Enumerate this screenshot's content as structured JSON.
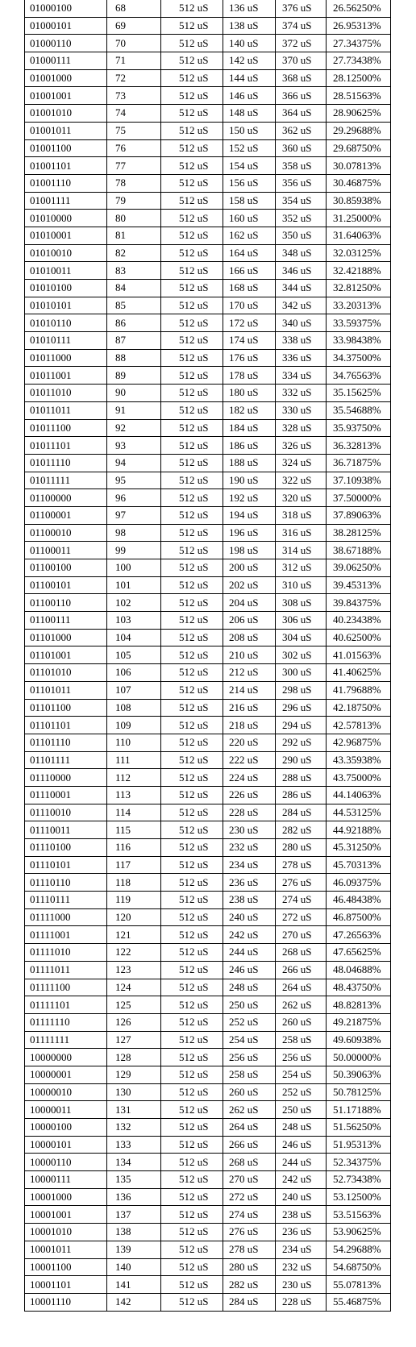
{
  "table": {
    "rows": [
      [
        "01000100",
        "68",
        "512 uS",
        "136 uS",
        "376 uS",
        "26.56250%"
      ],
      [
        "01000101",
        "69",
        "512 uS",
        "138 uS",
        "374 uS",
        "26.95313%"
      ],
      [
        "01000110",
        "70",
        "512 uS",
        "140 uS",
        "372 uS",
        "27.34375%"
      ],
      [
        "01000111",
        "71",
        "512 uS",
        "142 uS",
        "370 uS",
        "27.73438%"
      ],
      [
        "01001000",
        "72",
        "512 uS",
        "144 uS",
        "368 uS",
        "28.12500%"
      ],
      [
        "01001001",
        "73",
        "512 uS",
        "146 uS",
        "366 uS",
        "28.51563%"
      ],
      [
        "01001010",
        "74",
        "512 uS",
        "148 uS",
        "364 uS",
        "28.90625%"
      ],
      [
        "01001011",
        "75",
        "512 uS",
        "150 uS",
        "362 uS",
        "29.29688%"
      ],
      [
        "01001100",
        "76",
        "512 uS",
        "152 uS",
        "360 uS",
        "29.68750%"
      ],
      [
        "01001101",
        "77",
        "512 uS",
        "154 uS",
        "358 uS",
        "30.07813%"
      ],
      [
        "01001110",
        "78",
        "512 uS",
        "156 uS",
        "356 uS",
        "30.46875%"
      ],
      [
        "01001111",
        "79",
        "512 uS",
        "158 uS",
        "354 uS",
        "30.85938%"
      ],
      [
        "01010000",
        "80",
        "512 uS",
        "160 uS",
        "352 uS",
        "31.25000%"
      ],
      [
        "01010001",
        "81",
        "512 uS",
        "162 uS",
        "350 uS",
        "31.64063%"
      ],
      [
        "01010010",
        "82",
        "512 uS",
        "164 uS",
        "348 uS",
        "32.03125%"
      ],
      [
        "01010011",
        "83",
        "512 uS",
        "166 uS",
        "346 uS",
        "32.42188%"
      ],
      [
        "01010100",
        "84",
        "512 uS",
        "168 uS",
        "344 uS",
        "32.81250%"
      ],
      [
        "01010101",
        "85",
        "512 uS",
        "170 uS",
        "342 uS",
        "33.20313%"
      ],
      [
        "01010110",
        "86",
        "512 uS",
        "172 uS",
        "340 uS",
        "33.59375%"
      ],
      [
        "01010111",
        "87",
        "512 uS",
        "174 uS",
        "338 uS",
        "33.98438%"
      ],
      [
        "01011000",
        "88",
        "512 uS",
        "176 uS",
        "336 uS",
        "34.37500%"
      ],
      [
        "01011001",
        "89",
        "512 uS",
        "178 uS",
        "334 uS",
        "34.76563%"
      ],
      [
        "01011010",
        "90",
        "512 uS",
        "180 uS",
        "332 uS",
        "35.15625%"
      ],
      [
        "01011011",
        "91",
        "512 uS",
        "182 uS",
        "330 uS",
        "35.54688%"
      ],
      [
        "01011100",
        "92",
        "512 uS",
        "184 uS",
        "328 uS",
        "35.93750%"
      ],
      [
        "01011101",
        "93",
        "512 uS",
        "186 uS",
        "326 uS",
        "36.32813%"
      ],
      [
        "01011110",
        "94",
        "512 uS",
        "188 uS",
        "324 uS",
        "36.71875%"
      ],
      [
        "01011111",
        "95",
        "512 uS",
        "190 uS",
        "322 uS",
        "37.10938%"
      ],
      [
        "01100000",
        "96",
        "512 uS",
        "192 uS",
        "320 uS",
        "37.50000%"
      ],
      [
        "01100001",
        "97",
        "512 uS",
        "194 uS",
        "318 uS",
        "37.89063%"
      ],
      [
        "01100010",
        "98",
        "512 uS",
        "196 uS",
        "316 uS",
        "38.28125%"
      ],
      [
        "01100011",
        "99",
        "512 uS",
        "198 uS",
        "314 uS",
        "38.67188%"
      ],
      [
        "01100100",
        "100",
        "512 uS",
        "200 uS",
        "312 uS",
        "39.06250%"
      ],
      [
        "01100101",
        "101",
        "512 uS",
        "202 uS",
        "310 uS",
        "39.45313%"
      ],
      [
        "01100110",
        "102",
        "512 uS",
        "204 uS",
        "308 uS",
        "39.84375%"
      ],
      [
        "01100111",
        "103",
        "512 uS",
        "206 uS",
        "306 uS",
        "40.23438%"
      ],
      [
        "01101000",
        "104",
        "512 uS",
        "208 uS",
        "304 uS",
        "40.62500%"
      ],
      [
        "01101001",
        "105",
        "512 uS",
        "210 uS",
        "302 uS",
        "41.01563%"
      ],
      [
        "01101010",
        "106",
        "512 uS",
        "212 uS",
        "300 uS",
        "41.40625%"
      ],
      [
        "01101011",
        "107",
        "512 uS",
        "214 uS",
        "298 uS",
        "41.79688%"
      ],
      [
        "01101100",
        "108",
        "512 uS",
        "216 uS",
        "296 uS",
        "42.18750%"
      ],
      [
        "01101101",
        "109",
        "512 uS",
        "218 uS",
        "294 uS",
        "42.57813%"
      ],
      [
        "01101110",
        "110",
        "512 uS",
        "220 uS",
        "292 uS",
        "42.96875%"
      ],
      [
        "01101111",
        "111",
        "512 uS",
        "222 uS",
        "290 uS",
        "43.35938%"
      ],
      [
        "01110000",
        "112",
        "512 uS",
        "224 uS",
        "288 uS",
        "43.75000%"
      ],
      [
        "01110001",
        "113",
        "512 uS",
        "226 uS",
        "286 uS",
        "44.14063%"
      ],
      [
        "01110010",
        "114",
        "512 uS",
        "228 uS",
        "284 uS",
        "44.53125%"
      ],
      [
        "01110011",
        "115",
        "512 uS",
        "230 uS",
        "282 uS",
        "44.92188%"
      ],
      [
        "01110100",
        "116",
        "512 uS",
        "232 uS",
        "280 uS",
        "45.31250%"
      ],
      [
        "01110101",
        "117",
        "512 uS",
        "234 uS",
        "278 uS",
        "45.70313%"
      ],
      [
        "01110110",
        "118",
        "512 uS",
        "236 uS",
        "276 uS",
        "46.09375%"
      ],
      [
        "01110111",
        "119",
        "512 uS",
        "238 uS",
        "274 uS",
        "46.48438%"
      ],
      [
        "01111000",
        "120",
        "512 uS",
        "240 uS",
        "272 uS",
        "46.87500%"
      ],
      [
        "01111001",
        "121",
        "512 uS",
        "242 uS",
        "270 uS",
        "47.26563%"
      ],
      [
        "01111010",
        "122",
        "512 uS",
        "244 uS",
        "268 uS",
        "47.65625%"
      ],
      [
        "01111011",
        "123",
        "512 uS",
        "246 uS",
        "266 uS",
        "48.04688%"
      ],
      [
        "01111100",
        "124",
        "512 uS",
        "248 uS",
        "264 uS",
        "48.43750%"
      ],
      [
        "01111101",
        "125",
        "512 uS",
        "250 uS",
        "262 uS",
        "48.82813%"
      ],
      [
        "01111110",
        "126",
        "512 uS",
        "252 uS",
        "260 uS",
        "49.21875%"
      ],
      [
        "01111111",
        "127",
        "512 uS",
        "254 uS",
        "258 uS",
        "49.60938%"
      ],
      [
        "10000000",
        "128",
        "512 uS",
        "256 uS",
        "256 uS",
        "50.00000%"
      ],
      [
        "10000001",
        "129",
        "512 uS",
        "258 uS",
        "254 uS",
        "50.39063%"
      ],
      [
        "10000010",
        "130",
        "512 uS",
        "260 uS",
        "252 uS",
        "50.78125%"
      ],
      [
        "10000011",
        "131",
        "512 uS",
        "262 uS",
        "250 uS",
        "51.17188%"
      ],
      [
        "10000100",
        "132",
        "512 uS",
        "264 uS",
        "248 uS",
        "51.56250%"
      ],
      [
        "10000101",
        "133",
        "512 uS",
        "266 uS",
        "246 uS",
        "51.95313%"
      ],
      [
        "10000110",
        "134",
        "512 uS",
        "268 uS",
        "244 uS",
        "52.34375%"
      ],
      [
        "10000111",
        "135",
        "512 uS",
        "270 uS",
        "242 uS",
        "52.73438%"
      ],
      [
        "10001000",
        "136",
        "512 uS",
        "272 uS",
        "240 uS",
        "53.12500%"
      ],
      [
        "10001001",
        "137",
        "512 uS",
        "274 uS",
        "238 uS",
        "53.51563%"
      ],
      [
        "10001010",
        "138",
        "512 uS",
        "276 uS",
        "236 uS",
        "53.90625%"
      ],
      [
        "10001011",
        "139",
        "512 uS",
        "278 uS",
        "234 uS",
        "54.29688%"
      ],
      [
        "10001100",
        "140",
        "512 uS",
        "280 uS",
        "232 uS",
        "54.68750%"
      ],
      [
        "10001101",
        "141",
        "512 uS",
        "282 uS",
        "230 uS",
        "55.07813%"
      ],
      [
        "10001110",
        "142",
        "512 uS",
        "284 uS",
        "228 uS",
        "55.46875%"
      ]
    ]
  }
}
